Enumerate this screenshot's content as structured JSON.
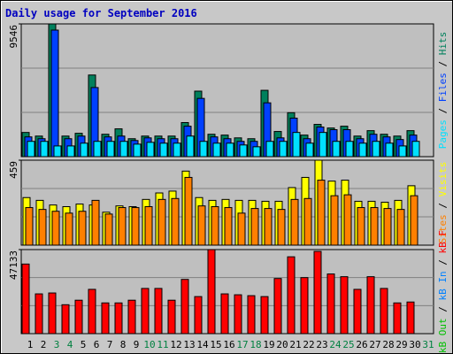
{
  "title": "Daily usage for September 2016",
  "legend_separator": " / ",
  "chart_data": [
    {
      "type": "bar",
      "ylim": [
        0,
        9546
      ],
      "yticks": [
        9546
      ],
      "grid_divisions": 3,
      "series": [
        {
          "name": "Hits",
          "color": "#00805c",
          "values": [
            1740,
            1480,
            9546,
            1480,
            1680,
            5870,
            1610,
            2000,
            1290,
            1480,
            1480,
            1480,
            2450,
            4710,
            1610,
            1550,
            1350,
            1290,
            4770,
            1810,
            3160,
            1550,
            2320,
            2060,
            2190,
            1480,
            1870,
            1610,
            1480,
            1870,
            null
          ]
        },
        {
          "name": "Files",
          "color": "#0040ff",
          "values": [
            1420,
            1290,
            9100,
            1290,
            1480,
            4970,
            1420,
            1480,
            1160,
            1350,
            1290,
            1290,
            2190,
            4190,
            1420,
            1290,
            1100,
            1100,
            3870,
            1350,
            2770,
            1290,
            2130,
            1940,
            1940,
            1290,
            1610,
            1420,
            1230,
            1550,
            null
          ]
        },
        {
          "name": "Pages",
          "color": "#00e0ff",
          "values": [
            1100,
            1100,
            770,
            770,
            970,
            1100,
            1100,
            1100,
            900,
            1030,
            970,
            970,
            1480,
            1100,
            970,
            970,
            840,
            710,
            1100,
            1100,
            1740,
            970,
            1740,
            1100,
            1100,
            970,
            1100,
            970,
            770,
            1100,
            null
          ]
        }
      ]
    },
    {
      "type": "bar",
      "ylim": [
        0,
        459
      ],
      "yticks": [
        459
      ],
      "grid_divisions": 3,
      "series": [
        {
          "name": "Visits",
          "color": "#ffff00",
          "values": [
            257,
            242,
            217,
            208,
            222,
            217,
            178,
            212,
            208,
            247,
            282,
            292,
            400,
            257,
            242,
            247,
            242,
            242,
            237,
            237,
            311,
            366,
            459,
            346,
            351,
            237,
            237,
            232,
            242,
            321,
            null
          ]
        },
        {
          "name": "Sites",
          "color": "#ff8000",
          "values": [
            203,
            193,
            183,
            173,
            183,
            242,
            168,
            203,
            203,
            208,
            247,
            252,
            366,
            212,
            208,
            203,
            173,
            198,
            198,
            193,
            247,
            252,
            351,
            267,
            272,
            203,
            203,
            198,
            193,
            267,
            null
          ]
        }
      ]
    },
    {
      "type": "bar",
      "ylim": [
        0,
        47133
      ],
      "yticks": [
        47133
      ],
      "grid_divisions": 3,
      "categories": [
        "1",
        "2",
        "3",
        "4",
        "5",
        "6",
        "7",
        "8",
        "9",
        "10",
        "11",
        "12",
        "13",
        "14",
        "15",
        "16",
        "17",
        "18",
        "19",
        "20",
        "21",
        "22",
        "23",
        "24",
        "25",
        "26",
        "27",
        "28",
        "29",
        "30",
        "31"
      ],
      "category_colors": [
        "#000000",
        "#000000",
        "#008040",
        "#008040",
        "#000000",
        "#000000",
        "#000000",
        "#000000",
        "#000000",
        "#008040",
        "#008040",
        "#000000",
        "#000000",
        "#000000",
        "#000000",
        "#000000",
        "#008040",
        "#008040",
        "#000000",
        "#000000",
        "#000000",
        "#000000",
        "#000000",
        "#008040",
        "#008040",
        "#000000",
        "#000000",
        "#000000",
        "#000000",
        "#000000",
        "#008040"
      ],
      "series": [
        {
          "name": "kB F",
          "color": "#ff0000",
          "values": [
            39020,
            22300,
            22800,
            16220,
            18750,
            24830,
            17230,
            17230,
            18750,
            25340,
            25340,
            18750,
            30410,
            20780,
            47133,
            22300,
            21790,
            21290,
            20780,
            30910,
            43080,
            31420,
            46120,
            33450,
            31930,
            24830,
            31930,
            25340,
            17230,
            17740,
            null
          ]
        },
        {
          "name": "kB In",
          "color": "#0080ff",
          "values": [
            0,
            0,
            0,
            0,
            0,
            0,
            0,
            0,
            0,
            0,
            0,
            0,
            0,
            0,
            0,
            0,
            0,
            0,
            0,
            0,
            0,
            0,
            0,
            0,
            0,
            0,
            0,
            0,
            0,
            0,
            null
          ]
        },
        {
          "name": "kB Out",
          "color": "#00c000",
          "values": [
            0,
            0,
            0,
            0,
            0,
            0,
            0,
            0,
            0,
            0,
            0,
            0,
            0,
            0,
            0,
            0,
            0,
            0,
            0,
            0,
            0,
            0,
            0,
            0,
            0,
            0,
            0,
            0,
            0,
            0,
            null
          ]
        }
      ]
    }
  ]
}
